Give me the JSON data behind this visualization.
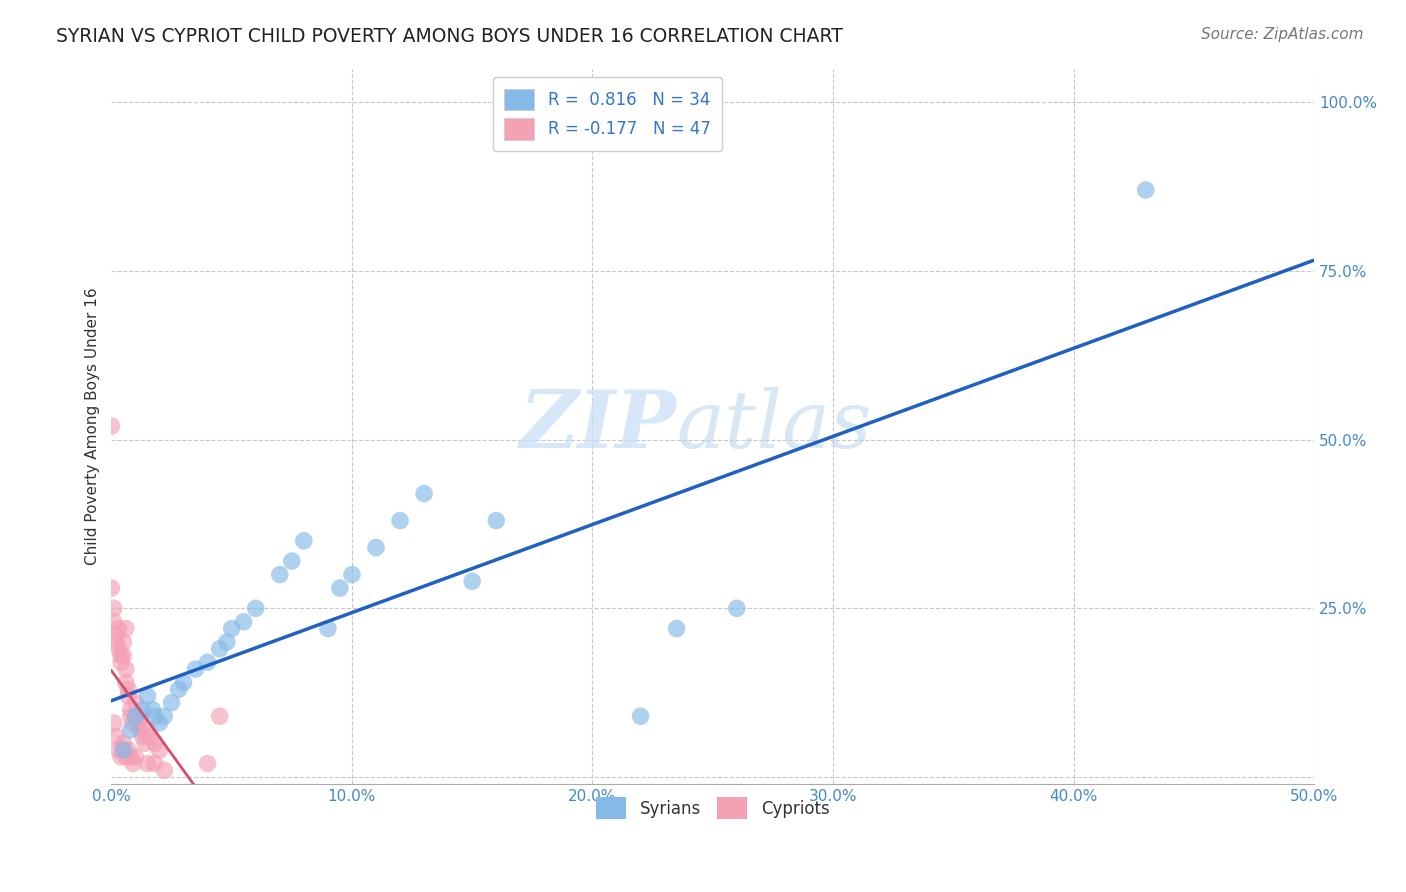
{
  "title": "SYRIAN VS CYPRIOT CHILD POVERTY AMONG BOYS UNDER 16 CORRELATION CHART",
  "source": "Source: ZipAtlas.com",
  "ylabel": "Child Poverty Among Boys Under 16",
  "xlabel": "",
  "xlim": [
    0.0,
    0.5
  ],
  "ylim": [
    -0.01,
    1.05
  ],
  "xticks": [
    0.0,
    0.1,
    0.2,
    0.3,
    0.4,
    0.5
  ],
  "xticklabels": [
    "0.0%",
    "10.0%",
    "20.0%",
    "30.0%",
    "40.0%",
    "50.0%"
  ],
  "yticks": [
    0.0,
    0.25,
    0.5,
    0.75,
    1.0
  ],
  "yticklabels": [
    "",
    "25.0%",
    "50.0%",
    "75.0%",
    "100.0%"
  ],
  "syrian_color": "#85b9e8",
  "cypriot_color": "#f4a0b5",
  "syrian_line_color": "#2060c0",
  "cypriot_line_color": "#d05070",
  "legend_syrian_r": "0.816",
  "legend_syrian_n": "34",
  "legend_cypriot_r": "-0.177",
  "legend_cypriot_n": "47",
  "watermark_zip": "ZIP",
  "watermark_atlas": "atlas",
  "background_color": "#ffffff",
  "grid_color": "#c8c8c8",
  "tick_color": "#4488cc",
  "title_fontsize": 13.5,
  "axis_label_fontsize": 11,
  "tick_fontsize": 11,
  "legend_fontsize": 12,
  "source_fontsize": 11,
  "syrian_x": [
    0.005,
    0.008,
    0.01,
    0.013,
    0.015,
    0.017,
    0.018,
    0.02,
    0.022,
    0.025,
    0.028,
    0.03,
    0.035,
    0.04,
    0.045,
    0.048,
    0.05,
    0.055,
    0.06,
    0.07,
    0.075,
    0.08,
    0.09,
    0.095,
    0.1,
    0.11,
    0.12,
    0.13,
    0.15,
    0.16,
    0.22,
    0.235,
    0.26,
    0.43
  ],
  "syrian_y": [
    0.04,
    0.07,
    0.09,
    0.1,
    0.12,
    0.1,
    0.09,
    0.08,
    0.09,
    0.11,
    0.13,
    0.14,
    0.16,
    0.17,
    0.19,
    0.2,
    0.22,
    0.23,
    0.25,
    0.3,
    0.32,
    0.35,
    0.22,
    0.28,
    0.3,
    0.34,
    0.38,
    0.42,
    0.29,
    0.38,
    0.09,
    0.22,
    0.25,
    0.87
  ],
  "cypriot_x": [
    0.0,
    0.001,
    0.001,
    0.002,
    0.002,
    0.003,
    0.003,
    0.004,
    0.004,
    0.005,
    0.005,
    0.006,
    0.006,
    0.006,
    0.007,
    0.007,
    0.008,
    0.008,
    0.009,
    0.01,
    0.01,
    0.011,
    0.012,
    0.012,
    0.013,
    0.014,
    0.015,
    0.016,
    0.018,
    0.02,
    0.0,
    0.001,
    0.002,
    0.003,
    0.004,
    0.005,
    0.005,
    0.006,
    0.007,
    0.008,
    0.009,
    0.01,
    0.015,
    0.018,
    0.022,
    0.04,
    0.045
  ],
  "cypriot_y": [
    0.28,
    0.25,
    0.23,
    0.21,
    0.2,
    0.22,
    0.19,
    0.18,
    0.17,
    0.2,
    0.18,
    0.22,
    0.16,
    0.14,
    0.13,
    0.12,
    0.1,
    0.09,
    0.08,
    0.09,
    0.11,
    0.08,
    0.07,
    0.09,
    0.06,
    0.05,
    0.07,
    0.06,
    0.05,
    0.04,
    0.52,
    0.08,
    0.06,
    0.04,
    0.03,
    0.04,
    0.05,
    0.03,
    0.04,
    0.03,
    0.02,
    0.03,
    0.02,
    0.02,
    0.01,
    0.02,
    0.09
  ]
}
